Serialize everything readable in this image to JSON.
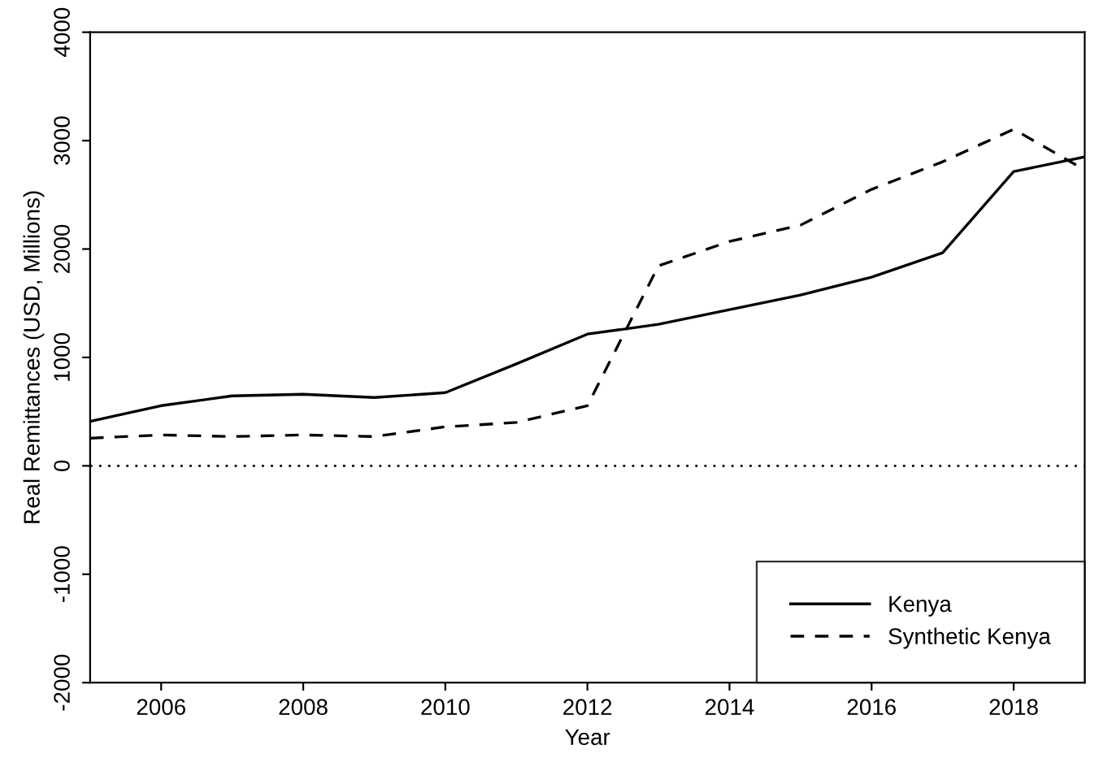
{
  "chart_data": {
    "type": "line",
    "xlabel": "Year",
    "ylabel": "Real Remittances (USD, Millions)",
    "x": [
      2005,
      2006,
      2007,
      2008,
      2009,
      2010,
      2011,
      2012,
      2013,
      2014,
      2015,
      2016,
      2017,
      2018,
      2019
    ],
    "series": [
      {
        "name": "Kenya",
        "color": "#000000",
        "line_style": "solid",
        "values": [
          410,
          555,
          645,
          660,
          630,
          675,
          940,
          1215,
          1305,
          1440,
          1575,
          1740,
          1965,
          2715,
          2850
        ]
      },
      {
        "name": "Synthetic Kenya",
        "color": "#000000",
        "line_style": "dashed",
        "values": [
          255,
          285,
          270,
          285,
          270,
          360,
          400,
          555,
          1845,
          2070,
          2220,
          2550,
          2805,
          3105,
          2730
        ]
      }
    ],
    "xlim": [
      2005,
      2019
    ],
    "xticks": [
      2006,
      2008,
      2010,
      2012,
      2014,
      2016,
      2018
    ],
    "ylim": [
      -2000,
      4000
    ],
    "yticks": [
      -2000,
      -1000,
      0,
      1000,
      2000,
      3000,
      4000
    ],
    "ref_lines": [
      {
        "axis": "y",
        "value": 0,
        "line_style": "dotted",
        "color": "#000000"
      }
    ],
    "grid": false,
    "legend": "bottom right",
    "marker": "none"
  }
}
